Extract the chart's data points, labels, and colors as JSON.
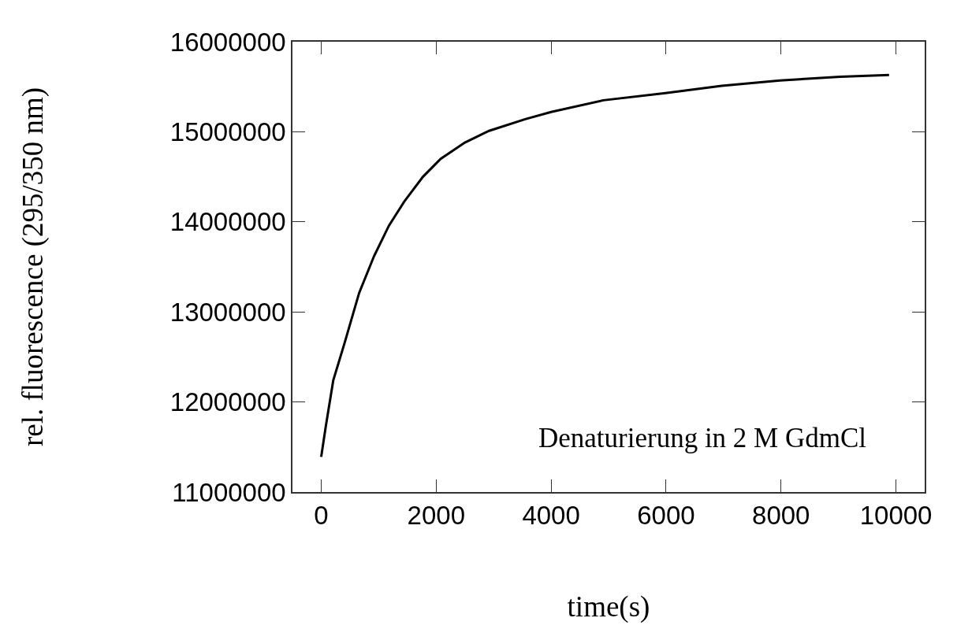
{
  "chart_data": {
    "type": "line",
    "xlabel": "time(s)",
    "ylabel": "rel. fluorescence (295/350 nm)",
    "annotations": [
      "Denaturierung in 2 M GdmCl"
    ],
    "x": [
      0,
      80,
      210,
      400,
      660,
      920,
      1180,
      1450,
      1770,
      2080,
      2500,
      2920,
      3550,
      4000,
      4910,
      5990,
      6970,
      7980,
      9030,
      9880
    ],
    "series": [
      {
        "color": "#000000",
        "values": [
          11390000,
          11730000,
          12240000,
          12640000,
          13210000,
          13620000,
          13960000,
          14230000,
          14500000,
          14700000,
          14880000,
          15010000,
          15140000,
          15220000,
          15350000,
          15430000,
          15510000,
          15570000,
          15610000,
          15630000
        ]
      }
    ],
    "xlim": [
      -500,
      10500
    ],
    "xticks": [
      0,
      2000,
      4000,
      6000,
      8000,
      10000
    ],
    "ylim": [
      11000000,
      16000000
    ],
    "yticks": [
      11000000,
      12000000,
      13000000,
      14000000,
      15000000,
      16000000
    ],
    "grid": false,
    "marker": "none",
    "line_style": "solid"
  }
}
